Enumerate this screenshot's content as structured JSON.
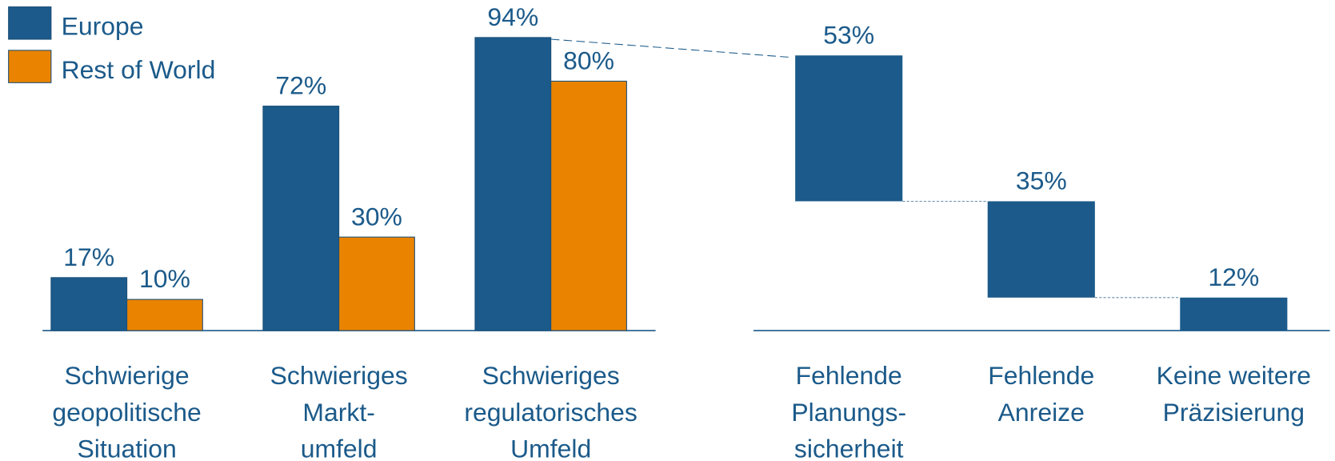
{
  "chart_data": [
    {
      "type": "bar",
      "categories": [
        "Schwierige\ngeopolitische\nSituation",
        "Schwieriges\nMarkt-\numfeld",
        "Schwieriges\nregulatorisches\nUmfeld"
      ],
      "series": [
        {
          "name": "Europe",
          "color": "#1b5a8a",
          "values": [
            17,
            72,
            94
          ],
          "value_labels": [
            "17%",
            "72%",
            "94%"
          ]
        },
        {
          "name": "Rest of World",
          "color": "#e98300",
          "values": [
            10,
            30,
            80
          ],
          "value_labels": [
            "10%",
            "30%",
            "80%"
          ]
        }
      ],
      "ylim": [
        0,
        100
      ],
      "legend": "upper left"
    },
    {
      "type": "waterfall",
      "categories": [
        "Fehlende\nPlanungs-\nsicherheit",
        "Fehlende\nAnreize",
        "Keine weitere\nPräzisierung"
      ],
      "values": [
        53,
        35,
        12
      ],
      "value_labels": [
        "53%",
        "35%",
        "12%"
      ],
      "color": "#1b5a8a",
      "ylim": [
        0,
        100
      ]
    }
  ]
}
